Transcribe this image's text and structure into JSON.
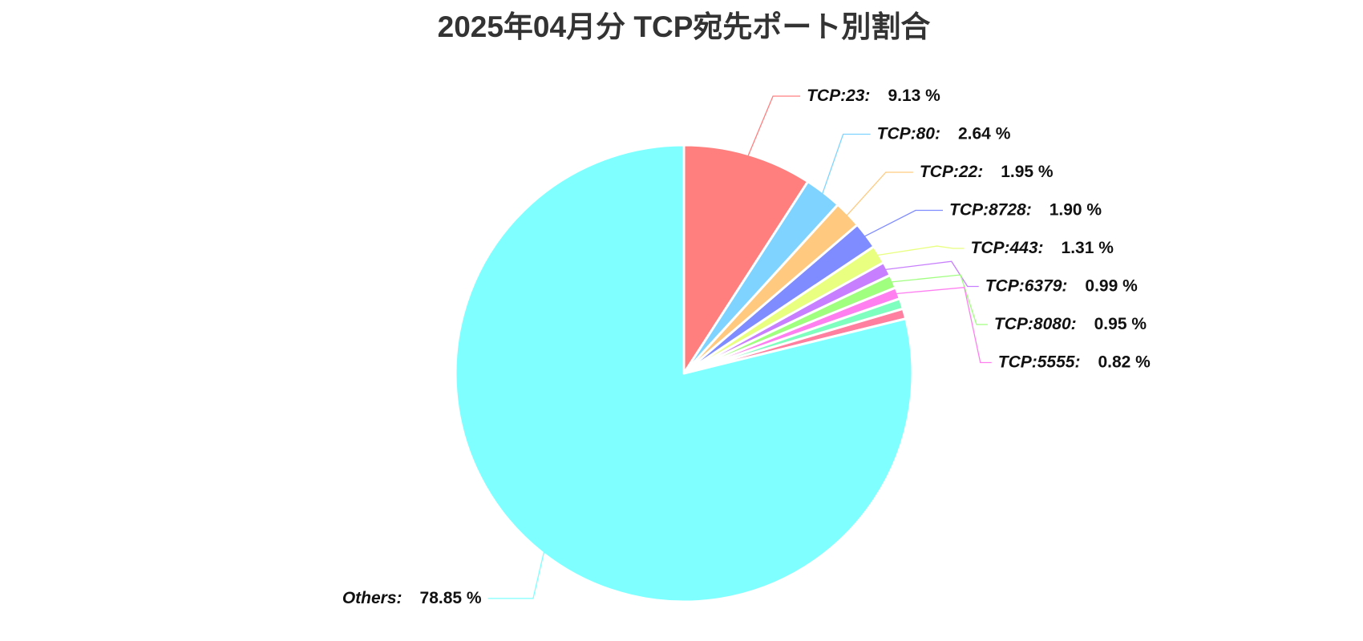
{
  "chart_data": {
    "type": "pie",
    "title": "2025年04月分 TCP宛先ポート別割合",
    "categories": [
      "TCP:23:",
      "TCP:80:",
      "TCP:22:",
      "TCP:8728:",
      "TCP:443:",
      "TCP:6379:",
      "TCP:8080:",
      "TCP:5555:",
      null,
      null,
      "Others:"
    ],
    "values": [
      9.13,
      2.64,
      1.95,
      1.9,
      1.31,
      0.99,
      0.95,
      0.82,
      0.74,
      0.72,
      78.85
    ],
    "value_labels": [
      "9.13 %",
      "2.64 %",
      "1.95 %",
      "1.90 %",
      "1.31 %",
      "0.99 %",
      "0.95 %",
      "0.82 %",
      null,
      null,
      "78.85 %"
    ],
    "colors": [
      "#ff7f7f",
      "#7fd4ff",
      "#ffca7f",
      "#7f8cff",
      "#e8ff7f",
      "#c87fff",
      "#a0ff7f",
      "#ff7ff0",
      "#7fffbf",
      "#ff7fa0",
      "#7fffff"
    ]
  }
}
